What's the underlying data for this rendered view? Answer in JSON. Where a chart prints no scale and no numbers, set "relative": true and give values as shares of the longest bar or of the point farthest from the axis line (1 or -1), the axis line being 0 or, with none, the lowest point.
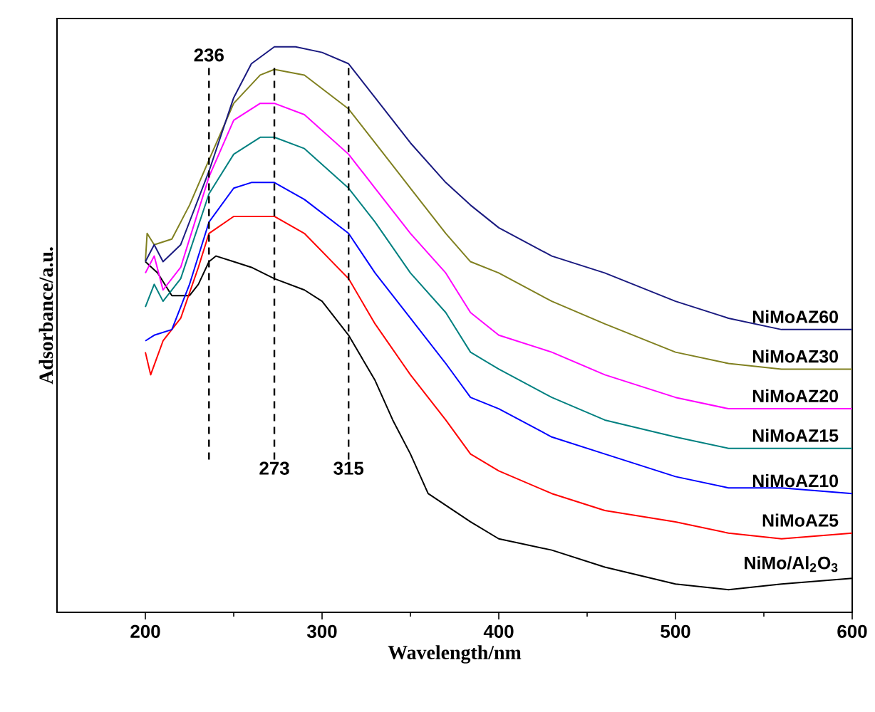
{
  "chart_data": {
    "type": "line",
    "relative": true,
    "xlabel": "Wavelength/nm",
    "ylabel": "Adsorbance/a.u.",
    "xlim": [
      150,
      600
    ],
    "xticks": [
      200,
      300,
      400,
      500,
      600
    ],
    "marker": "none",
    "ref_lines": [
      {
        "axis": "x",
        "value": 236,
        "label": "236",
        "line_style": "dashed",
        "color": "#000000"
      },
      {
        "axis": "x",
        "value": 273,
        "label": "273",
        "line_style": "dashed",
        "color": "#000000"
      },
      {
        "axis": "x",
        "value": 315,
        "label": "315",
        "line_style": "dashed",
        "color": "#000000"
      }
    ],
    "series": [
      {
        "name": "NiMo/Al$_{2}$O$_{3}$",
        "color": "#000000",
        "x": [
          200,
          207,
          215,
          225,
          230,
          236,
          240,
          250,
          260,
          273,
          290,
          300,
          315,
          330,
          340,
          350,
          360,
          384,
          400,
          430,
          460,
          500,
          530,
          560,
          600
        ],
        "values": [
          0.62,
          0.6,
          0.56,
          0.56,
          0.58,
          0.62,
          0.63,
          0.62,
          0.61,
          0.59,
          0.57,
          0.55,
          0.49,
          0.41,
          0.34,
          0.28,
          0.21,
          0.16,
          0.13,
          0.11,
          0.08,
          0.05,
          0.04,
          0.05,
          0.06
        ]
      },
      {
        "name": "NiMoAZ5",
        "color": "#ff0000",
        "x": [
          200,
          203,
          210,
          220,
          230,
          236,
          250,
          265,
          273,
          290,
          315,
          330,
          350,
          370,
          384,
          400,
          430,
          460,
          500,
          530,
          560,
          600
        ],
        "values": [
          0.46,
          0.42,
          0.48,
          0.52,
          0.61,
          0.67,
          0.7,
          0.7,
          0.7,
          0.67,
          0.59,
          0.51,
          0.42,
          0.34,
          0.28,
          0.25,
          0.21,
          0.18,
          0.16,
          0.14,
          0.13,
          0.14
        ]
      },
      {
        "name": "NiMoAZ10",
        "color": "#0000ff",
        "x": [
          200,
          205,
          215,
          225,
          236,
          250,
          260,
          273,
          290,
          315,
          330,
          350,
          370,
          384,
          400,
          430,
          460,
          500,
          530,
          560,
          600
        ],
        "values": [
          0.48,
          0.49,
          0.5,
          0.58,
          0.69,
          0.75,
          0.76,
          0.76,
          0.73,
          0.67,
          0.6,
          0.52,
          0.44,
          0.38,
          0.36,
          0.31,
          0.28,
          0.24,
          0.22,
          0.22,
          0.21
        ]
      },
      {
        "name": "NiMoAZ15",
        "color": "#008080",
        "x": [
          200,
          205,
          210,
          220,
          236,
          250,
          265,
          273,
          290,
          315,
          330,
          350,
          370,
          384,
          400,
          430,
          460,
          500,
          530,
          560,
          600
        ],
        "values": [
          0.54,
          0.58,
          0.55,
          0.59,
          0.74,
          0.81,
          0.84,
          0.84,
          0.82,
          0.75,
          0.69,
          0.6,
          0.53,
          0.46,
          0.43,
          0.38,
          0.34,
          0.31,
          0.29,
          0.29,
          0.29
        ]
      },
      {
        "name": "NiMoAZ20",
        "color": "#ff00ff",
        "x": [
          200,
          205,
          210,
          220,
          236,
          250,
          265,
          273,
          290,
          315,
          330,
          350,
          370,
          384,
          400,
          430,
          460,
          500,
          530,
          560,
          600
        ],
        "values": [
          0.6,
          0.63,
          0.57,
          0.61,
          0.77,
          0.87,
          0.9,
          0.9,
          0.88,
          0.81,
          0.75,
          0.67,
          0.6,
          0.53,
          0.49,
          0.46,
          0.42,
          0.38,
          0.36,
          0.36,
          0.36
        ]
      },
      {
        "name": "NiMoAZ30",
        "color": "#808020",
        "x": [
          200,
          201,
          205,
          215,
          225,
          236,
          250,
          265,
          273,
          290,
          315,
          330,
          350,
          370,
          384,
          400,
          430,
          460,
          500,
          530,
          560,
          600
        ],
        "values": [
          0.62,
          0.67,
          0.65,
          0.66,
          0.72,
          0.8,
          0.9,
          0.95,
          0.96,
          0.95,
          0.89,
          0.83,
          0.75,
          0.67,
          0.62,
          0.6,
          0.55,
          0.51,
          0.46,
          0.44,
          0.43,
          0.43
        ]
      },
      {
        "name": "NiMoAZ60",
        "color": "#1a1a80",
        "x": [
          200,
          205,
          210,
          220,
          236,
          250,
          260,
          273,
          285,
          300,
          315,
          330,
          350,
          370,
          384,
          400,
          430,
          460,
          500,
          530,
          560,
          600
        ],
        "values": [
          0.62,
          0.65,
          0.62,
          0.65,
          0.78,
          0.91,
          0.97,
          1.0,
          1.0,
          0.99,
          0.97,
          0.91,
          0.83,
          0.76,
          0.72,
          0.68,
          0.63,
          0.6,
          0.55,
          0.52,
          0.5,
          0.5
        ]
      }
    ]
  }
}
